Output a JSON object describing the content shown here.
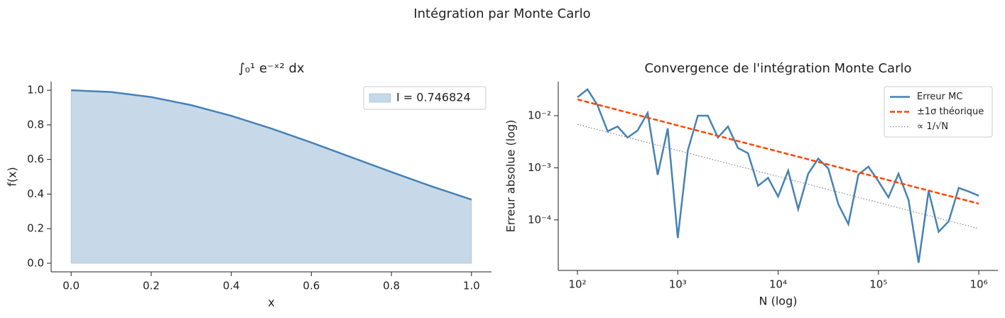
{
  "title": "Intégration par Monte Carlo",
  "chart_data": [
    {
      "type": "area",
      "title": "∫₀¹ e⁻ˣ² dx",
      "xlabel": "x",
      "ylabel": "f(x)",
      "x": [
        0,
        0.1,
        0.2,
        0.3,
        0.4,
        0.5,
        0.6,
        0.7,
        0.8,
        0.9,
        1
      ],
      "series": [
        {
          "name": "I = 0.746824",
          "color": "#4682b4",
          "values": [
            1,
            0.99005,
            0.960789,
            0.913931,
            0.852144,
            0.778801,
            0.697676,
            0.612626,
            0.527292,
            0.444858,
            0.367879
          ]
        }
      ],
      "xlim": [
        -0.05,
        1.05
      ],
      "ylim": [
        -0.05,
        1.05
      ],
      "xticks": [
        {
          "value": 0,
          "label": "0.0"
        },
        0.2,
        0.4,
        0.6,
        0.8,
        {
          "value": 1,
          "label": "1.0"
        }
      ],
      "yticks": [
        {
          "value": 0,
          "label": "0.0"
        },
        0.2,
        0.4,
        0.6,
        0.8,
        {
          "value": 1,
          "label": "1.0"
        }
      ],
      "legend": "upper right"
    },
    {
      "type": "line",
      "title": "Convergence de l'intégration Monte Carlo",
      "xlabel": "N (log)",
      "ylabel": "Erreur absolue (log)",
      "xscale": "log",
      "yscale": "log",
      "x": [
        100,
        126,
        158,
        200,
        251,
        316,
        398,
        501,
        631,
        794,
        1000,
        1259,
        1585,
        1995,
        2512,
        3162,
        3981,
        5012,
        6310,
        7943,
        10000,
        12589,
        15849,
        19953,
        25119,
        31623,
        39811,
        50119,
        63096,
        79433,
        100000,
        125893,
        158489,
        199526,
        251189,
        316228,
        398107,
        501187,
        630957,
        794328,
        1000000
      ],
      "series": [
        {
          "name": "Erreur MC",
          "color": "#4682b4",
          "style": "solid",
          "values": [
            0.0226,
            0.032,
            0.016,
            0.005,
            0.0062,
            0.0038,
            0.0052,
            0.0113,
            0.00073,
            0.0057,
            4.5e-05,
            0.00215,
            0.01,
            0.01,
            0.0038,
            0.0062,
            0.0024,
            0.0019,
            0.00045,
            0.00064,
            0.00028,
            0.00088,
            0.00016,
            0.00077,
            0.0015,
            0.00097,
            0.0002,
            8.3e-05,
            0.00074,
            0.00105,
            0.00055,
            0.00027,
            0.00077,
            0.00024,
            1.5e-05,
            0.00036,
            5.9e-05,
            9.4e-05,
            0.00041,
            0.00035,
            0.00029
          ]
        },
        {
          "name": "±1σ théorique",
          "color": "#ff4500",
          "style": "dashed",
          "values": [
            0.0205,
            0.01827,
            0.01629,
            0.01452,
            0.01294,
            0.01153,
            0.01028,
            0.00916,
            0.00817,
            0.00728,
            0.00648,
            0.00578,
            0.00515,
            0.00459,
            0.00409,
            0.00365,
            0.00325,
            0.0029,
            0.00258,
            0.0023,
            0.00205,
            0.001827,
            0.001629,
            0.001452,
            0.001294,
            0.001153,
            0.001028,
            0.000916,
            0.000817,
            0.000728,
            0.000648,
            0.000578,
            0.000515,
            0.000459,
            0.000409,
            0.000365,
            0.000325,
            0.00029,
            0.000258,
            0.00023,
            0.000205
          ]
        },
        {
          "name": "∝ 1/√N",
          "color": "#808080",
          "style": "dotted",
          "x": [
            100,
            1000000
          ],
          "values": [
            0.0068,
            6.8e-05
          ]
        }
      ],
      "xlim": [
        64.4,
        1550000
      ],
      "ylim": [
        1.07e-05,
        0.045
      ],
      "xticks": [
        {
          "value": 100,
          "label": "10²"
        },
        {
          "value": 1000,
          "label": "10³"
        },
        {
          "value": 10000,
          "label": "10⁴"
        },
        {
          "value": 100000,
          "label": "10⁵"
        },
        {
          "value": 1000000,
          "label": "10⁶"
        }
      ],
      "yticks": [
        {
          "value": 0.0001,
          "label": "10⁻⁴"
        },
        {
          "value": 0.001,
          "label": "10⁻³"
        },
        {
          "value": 0.01,
          "label": "10⁻²"
        }
      ],
      "legend": "upper right"
    }
  ]
}
